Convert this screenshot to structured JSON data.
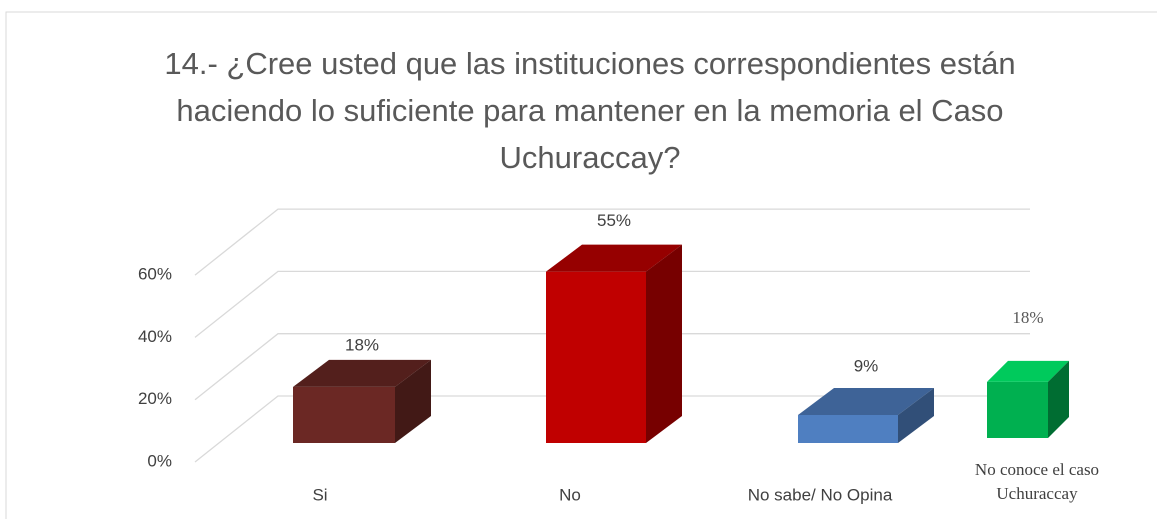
{
  "chart_data": {
    "type": "bar3d",
    "title": "14.- ¿Cree usted que las instituciones correspondientes están haciendo lo suficiente para mantener en la memoria el Caso Uchuraccay?",
    "categories": [
      "Si",
      "No",
      "No sabe/ No Opina",
      "No conoce el caso Uchuraccay"
    ],
    "values": [
      18,
      55,
      9,
      18
    ],
    "value_labels": [
      "18%",
      "55%",
      "9%",
      "18%"
    ],
    "colors": [
      "#6b2824",
      "#c00000",
      "#4f7fc1",
      "#00b050"
    ],
    "ylim": [
      0,
      60
    ],
    "yticks": [
      {
        "value": 0,
        "label": "0%"
      },
      {
        "value": 20,
        "label": "20%"
      },
      {
        "value": 40,
        "label": "40%"
      },
      {
        "value": 60,
        "label": "60%"
      }
    ],
    "grid": true
  }
}
